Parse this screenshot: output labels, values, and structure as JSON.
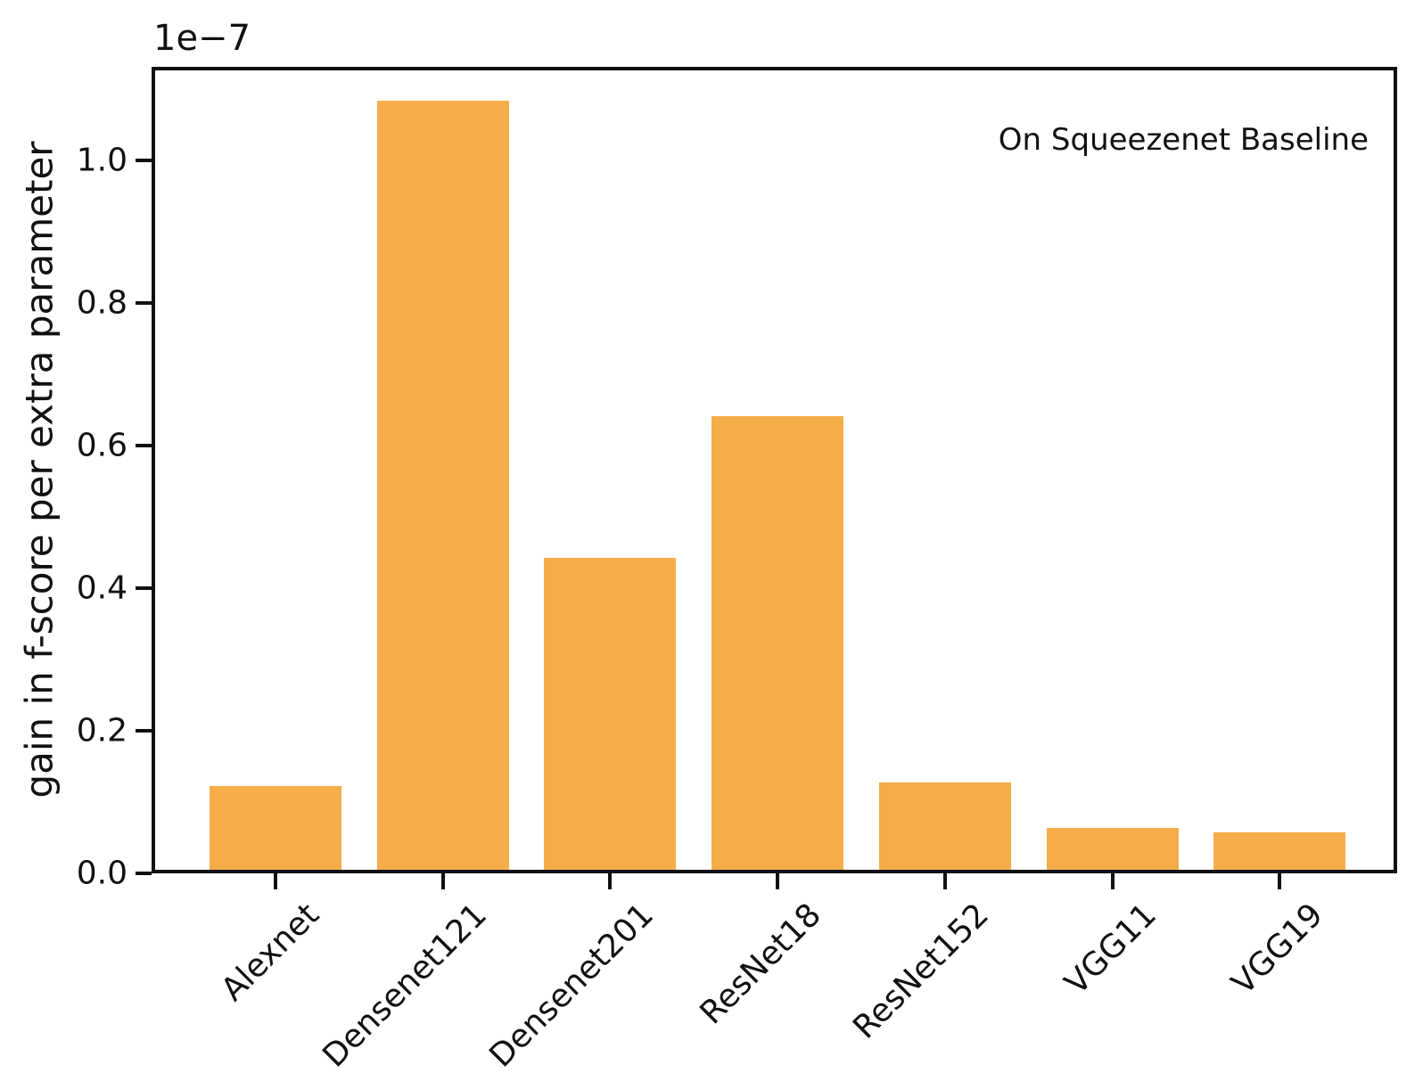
{
  "chart_data": {
    "type": "bar",
    "title": "",
    "xlabel": "",
    "ylabel": "gain in f-score per extra parameter",
    "annotation": "On Squeezenet Baseline",
    "offset_text": "1e−7",
    "scale_factor": 1e-07,
    "categories": [
      "Alexnet",
      "Densenet121",
      "Densenet201",
      "ResNet18",
      "ResNet152",
      "VGG11",
      "VGG19"
    ],
    "values": [
      0.118,
      1.078,
      0.438,
      0.636,
      0.123,
      0.059,
      0.053
    ],
    "yticks": [
      "0.0",
      "0.2",
      "0.4",
      "0.6",
      "0.8",
      "1.0"
    ],
    "ytick_values": [
      0.0,
      0.2,
      0.4,
      0.6,
      0.8,
      1.0
    ],
    "ylim": [
      0,
      1.131
    ],
    "bar_color": "#f5ad4a",
    "axis_color": "#111111",
    "background_color": "#ffffff",
    "grid": false,
    "legend_position": "none",
    "xtick_rotation": 45
  }
}
